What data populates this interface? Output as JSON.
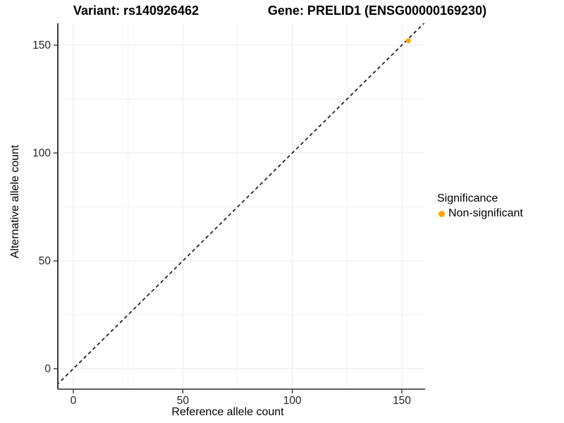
{
  "titles": {
    "variant": "Variant: rs140926462",
    "gene": "Gene: PRELID1 (ENSG00000169230)"
  },
  "legend": {
    "title": "Significance",
    "position": "right",
    "items": [
      {
        "label": "Non-significant",
        "color": "#FFA500",
        "marker": "dot-icon"
      }
    ]
  },
  "colors": {
    "point": "#FFA500",
    "grid_major": "#EBEBEB",
    "grid_minor": "#F4F4F4",
    "axis_line_left": "#3a3a3a",
    "axis_line_bottom": "#5c5c5c",
    "tick_mark": "#333333",
    "tick_label": "#262626",
    "identity_line": "#1a1a1a",
    "background": "#FFFFFF"
  },
  "chart_data": {
    "type": "scatter",
    "title": "Variant: rs140926462    Gene: PRELID1 (ENSG00000169230)",
    "xlabel": "Reference allele count",
    "ylabel": "Alternative allele count",
    "xlim": [
      -8,
      161
    ],
    "ylim": [
      -9.5,
      160
    ],
    "x_ticks": [
      0,
      50,
      100,
      150
    ],
    "y_ticks": [
      0,
      50,
      100,
      150
    ],
    "x_minor_ticks": [
      25,
      75,
      125
    ],
    "y_minor_ticks": [
      25,
      75,
      125
    ],
    "grid": true,
    "legend_position": "right",
    "series": [
      {
        "name": "Non-significant",
        "color": "#FFA500",
        "points": [
          {
            "x": 153,
            "y": 152
          }
        ]
      }
    ],
    "reference_line": {
      "kind": "identity y=x",
      "slope": 1,
      "intercept": 0,
      "style": "dashed",
      "color": "#1a1a1a"
    }
  }
}
